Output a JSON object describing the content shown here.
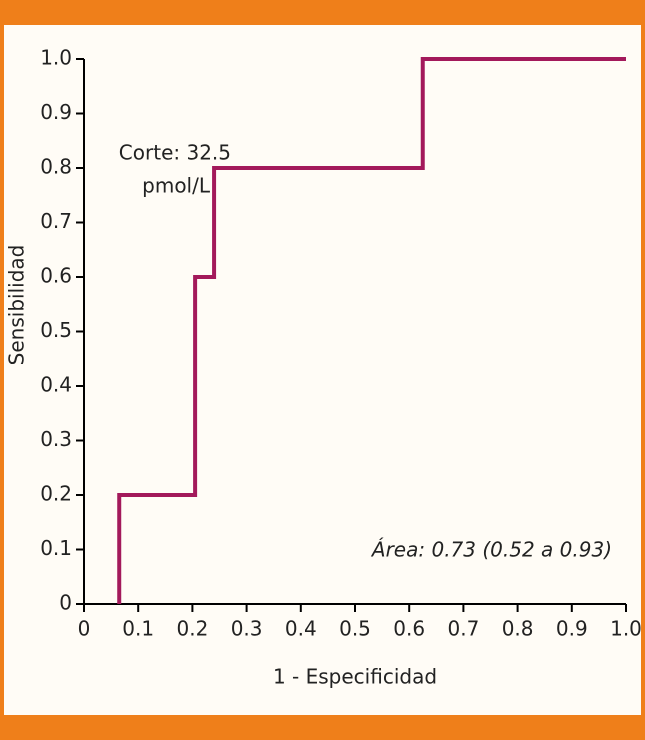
{
  "chart_data": {
    "type": "line",
    "x_label": "1 - Especificidad",
    "y_label": "Sensibilidad",
    "annotations": [
      "Corte: 32.5",
      "pmol/L",
      "Área: 0.73 (0.52 a 0.93)"
    ],
    "x": [
      0.065,
      0.065,
      0.205,
      0.205,
      0.24,
      0.24,
      0.625,
      0.625,
      1.0
    ],
    "series": [
      {
        "color": "#a3195b",
        "values": [
          0,
          0.2,
          0.2,
          0.6,
          0.6,
          0.8,
          0.8,
          1.0,
          1.0
        ]
      }
    ],
    "xlim": [
      0,
      1
    ],
    "ylim": [
      0,
      1
    ],
    "xticks": [
      0,
      0.1,
      0.2,
      0.3,
      0.4,
      0.5,
      0.6,
      0.7,
      0.8,
      0.9,
      {
        "value": 1,
        "label": "1.0"
      }
    ],
    "yticks": [
      0,
      0.1,
      0.2,
      0.3,
      0.4,
      0.5,
      0.6,
      0.7,
      0.8,
      0.9,
      {
        "value": 1,
        "label": "1.0"
      }
    ],
    "grid": false
  }
}
